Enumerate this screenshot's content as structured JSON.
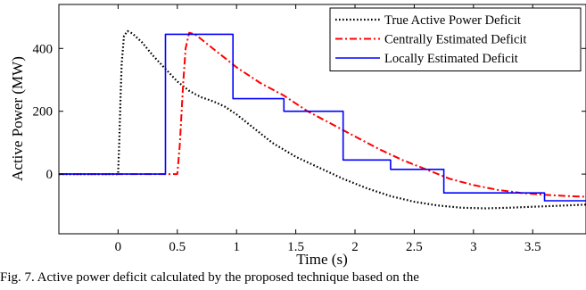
{
  "chart_data": {
    "type": "line",
    "title": "",
    "xlabel": "Time (s)",
    "ylabel": "Active Power (MW)",
    "xlim": [
      -0.5,
      3.95
    ],
    "ylim": [
      -190,
      540
    ],
    "x_ticks": [
      0,
      0.5,
      1,
      1.5,
      2,
      2.5,
      3,
      3.5
    ],
    "x_tick_labels": [
      "0",
      "0.5",
      "1",
      "1.5",
      "2",
      "2.5",
      "3",
      "3.5"
    ],
    "y_ticks": [
      0,
      200,
      400
    ],
    "y_tick_labels": [
      "0",
      "200",
      "400"
    ],
    "grid": false,
    "legend_position": "top-right",
    "series": [
      {
        "name": "True Active Power Deficit",
        "style": "dotted",
        "color": "#000000",
        "points": [
          [
            -0.5,
            0
          ],
          [
            -0.01,
            0
          ],
          [
            0,
            0
          ],
          [
            0.01,
            100
          ],
          [
            0.02,
            240
          ],
          [
            0.03,
            350
          ],
          [
            0.05,
            440
          ],
          [
            0.08,
            455
          ],
          [
            0.12,
            448
          ],
          [
            0.2,
            420
          ],
          [
            0.3,
            375
          ],
          [
            0.4,
            335
          ],
          [
            0.5,
            295
          ],
          [
            0.6,
            265
          ],
          [
            0.7,
            245
          ],
          [
            0.8,
            232
          ],
          [
            0.9,
            215
          ],
          [
            1.0,
            190
          ],
          [
            1.1,
            160
          ],
          [
            1.2,
            130
          ],
          [
            1.3,
            100
          ],
          [
            1.5,
            55
          ],
          [
            1.7,
            20
          ],
          [
            1.9,
            -15
          ],
          [
            2.1,
            -45
          ],
          [
            2.3,
            -70
          ],
          [
            2.5,
            -88
          ],
          [
            2.7,
            -100
          ],
          [
            2.9,
            -107
          ],
          [
            3.1,
            -109
          ],
          [
            3.3,
            -107
          ],
          [
            3.5,
            -104
          ],
          [
            3.7,
            -101
          ],
          [
            3.95,
            -97
          ]
        ]
      },
      {
        "name": "Centrally Estimated Deficit",
        "style": "dashdot",
        "color": "#ff0000",
        "points": [
          [
            -0.5,
            0
          ],
          [
            0.45,
            0
          ],
          [
            0.5,
            0
          ],
          [
            0.52,
            90
          ],
          [
            0.55,
            290
          ],
          [
            0.57,
            400
          ],
          [
            0.6,
            450
          ],
          [
            0.65,
            445
          ],
          [
            0.75,
            415
          ],
          [
            0.85,
            385
          ],
          [
            1.0,
            340
          ],
          [
            1.2,
            290
          ],
          [
            1.4,
            250
          ],
          [
            1.5,
            225
          ],
          [
            1.6,
            200
          ],
          [
            1.8,
            160
          ],
          [
            2.0,
            120
          ],
          [
            2.2,
            80
          ],
          [
            2.4,
            45
          ],
          [
            2.6,
            15
          ],
          [
            2.8,
            -15
          ],
          [
            3.0,
            -35
          ],
          [
            3.2,
            -50
          ],
          [
            3.4,
            -60
          ],
          [
            3.6,
            -66
          ],
          [
            3.8,
            -70
          ],
          [
            3.95,
            -72
          ]
        ]
      },
      {
        "name": "Locally Estimated Deficit",
        "style": "solid",
        "color": "#0000ff",
        "points": [
          [
            -0.5,
            0
          ],
          [
            0.4,
            0
          ],
          [
            0.4,
            445
          ],
          [
            0.97,
            445
          ],
          [
            0.97,
            240
          ],
          [
            1.4,
            240
          ],
          [
            1.4,
            200
          ],
          [
            1.9,
            200
          ],
          [
            1.9,
            45
          ],
          [
            2.3,
            45
          ],
          [
            2.3,
            15
          ],
          [
            2.75,
            15
          ],
          [
            2.75,
            -60
          ],
          [
            3.6,
            -60
          ],
          [
            3.6,
            -85
          ],
          [
            3.95,
            -85
          ]
        ]
      }
    ]
  },
  "caption": "Fig. 7. Active power deficit calculated by the proposed technique based on the"
}
